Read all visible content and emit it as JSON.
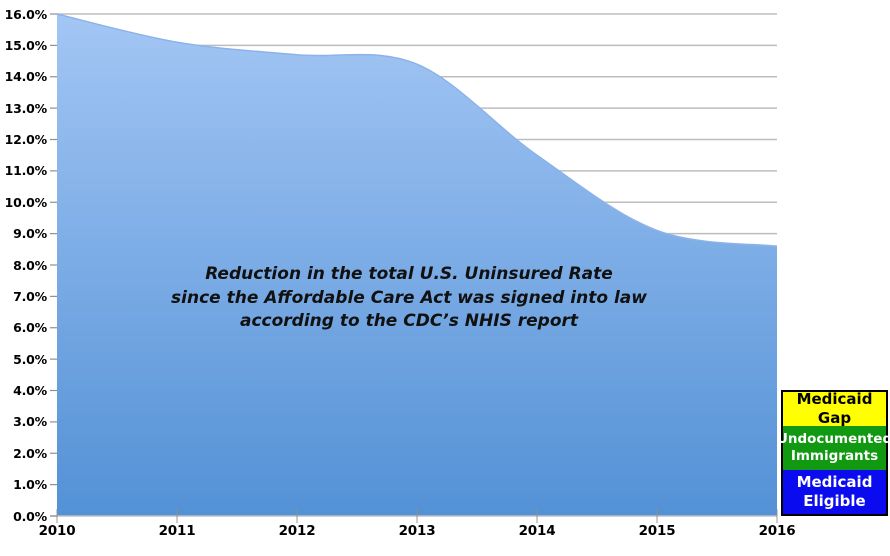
{
  "chart_data": {
    "type": "area",
    "x": [
      "2010",
      "2011",
      "2012",
      "2013",
      "2014",
      "2015",
      "2016"
    ],
    "values": [
      16.0,
      15.1,
      14.7,
      14.4,
      11.5,
      9.1,
      8.6
    ],
    "unit": "%",
    "ylim": [
      0,
      16
    ],
    "ytick_step": 1,
    "y_tick_labels": [
      "0.0%",
      "1.0%",
      "2.0%",
      "3.0%",
      "4.0%",
      "5.0%",
      "6.0%",
      "7.0%",
      "8.0%",
      "9.0%",
      "10.0%",
      "11.0%",
      "12.0%",
      "13.0%",
      "14.0%",
      "15.0%",
      "16.0%"
    ],
    "xlabel": "",
    "ylabel": "",
    "grid": "horizontal",
    "legend_position": "bottom-right",
    "annotation": {
      "lines": [
        "Reduction in the total U.S. Uninsured Rate",
        "since the Affordable Care Act was signed into law",
        "according to the CDC’s NHIS report"
      ]
    },
    "legend": {
      "items": [
        {
          "label": "Medicaid Gap",
          "bg": "#FFFF00",
          "fg": "#000000"
        },
        {
          "label": "Undocumented\nImmigrants",
          "bg": "#119911",
          "fg": "#FFFFFF"
        },
        {
          "label": "Medicaid\nEligible",
          "bg": "#0B0BEF",
          "fg": "#FFFFFF"
        }
      ]
    }
  },
  "colors": {
    "area_gradient_top": "#A3C6F4",
    "area_gradient_bottom": "#5391D6",
    "area_edge": "#8CB3E9",
    "gridline": "#BDBDBD",
    "axis_line": "#BFBFBF",
    "tick": "#8F8F8F",
    "text": "#000000",
    "background": "#FFFFFF",
    "legend_border": "#000000"
  }
}
